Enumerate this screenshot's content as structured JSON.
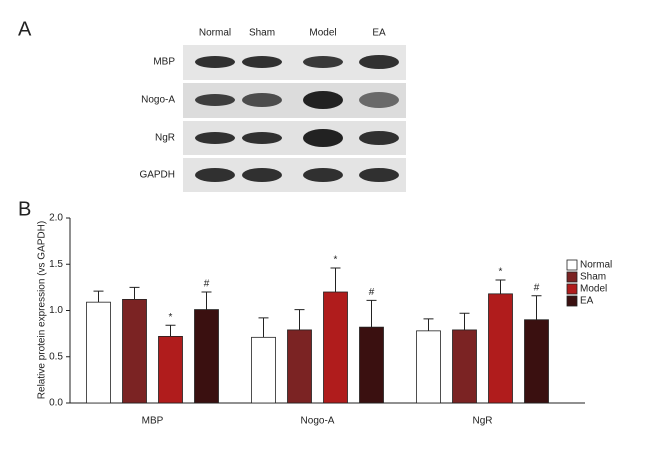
{
  "panel_a": {
    "label": "A",
    "lanes": [
      "Normal",
      "Sham",
      "Model",
      "EA"
    ],
    "rows": [
      "MBP",
      "Nogo-A",
      "NgR",
      "GAPDH"
    ]
  },
  "chart_data": {
    "type": "bar",
    "panel_label": "B",
    "ylabel": "Relative protein expression (vs GAPDH)",
    "categories": [
      "MBP",
      "Nogo-A",
      "NgR"
    ],
    "series": [
      {
        "name": "Normal",
        "color": "#ffffff",
        "values": [
          1.09,
          0.71,
          0.78
        ],
        "errors": [
          0.12,
          0.21,
          0.13
        ]
      },
      {
        "name": "Sham",
        "color": "#7b2323",
        "values": [
          1.12,
          0.79,
          0.79
        ],
        "errors": [
          0.13,
          0.22,
          0.18
        ]
      },
      {
        "name": "Model",
        "color": "#b01c1c",
        "values": [
          0.72,
          1.2,
          1.18
        ],
        "errors": [
          0.12,
          0.26,
          0.15
        ],
        "significance": [
          "*",
          "*",
          "*"
        ]
      },
      {
        "name": "EA",
        "color": "#3a1010",
        "values": [
          1.01,
          0.82,
          0.9
        ],
        "errors": [
          0.19,
          0.29,
          0.26
        ],
        "significance": [
          "#",
          "#",
          "#"
        ]
      }
    ],
    "ylim": [
      0,
      2.0
    ],
    "yticks": [
      {
        "value": 0,
        "label": "0.0"
      },
      {
        "value": 0.5,
        "label": "0.5"
      },
      {
        "value": 1.0,
        "label": "1.0"
      },
      {
        "value": 1.5,
        "label": "1.5"
      },
      {
        "value": 2.0,
        "label": "2.0"
      }
    ],
    "legend": "right"
  }
}
